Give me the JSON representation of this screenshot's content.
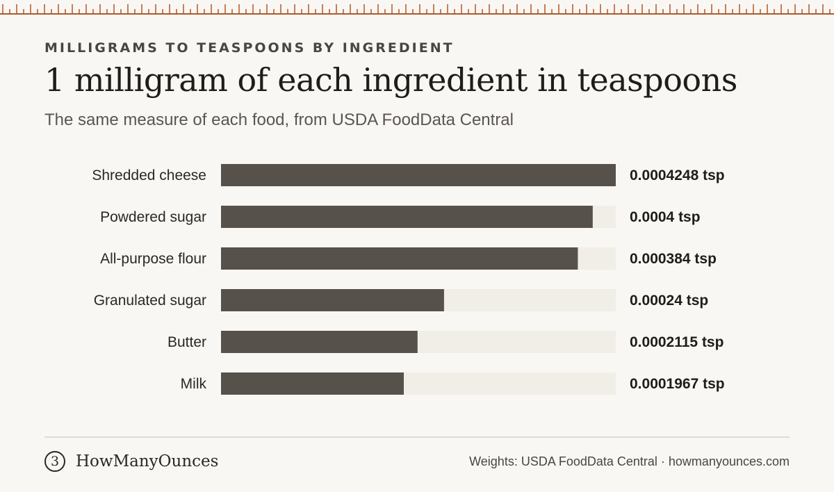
{
  "header": {
    "eyebrow": "MILLIGRAMS TO TEASPOONS BY INGREDIENT",
    "title": "1 milligram of each ingredient in teaspoons",
    "subtitle": "The same measure of each food, from USDA FoodData Central"
  },
  "chart_data": {
    "type": "bar",
    "orientation": "horizontal",
    "categories": [
      "Shredded cheese",
      "Powdered sugar",
      "All-purpose flour",
      "Granulated sugar",
      "Butter",
      "Milk"
    ],
    "values": [
      0.0004248,
      0.0004,
      0.000384,
      0.00024,
      0.0002115,
      0.0001967
    ],
    "value_labels": [
      "0.0004248 tsp",
      "0.0004 tsp",
      "0.000384 tsp",
      "0.00024 tsp",
      "0.0002115 tsp",
      "0.0001967 tsp"
    ],
    "xlim": [
      0,
      0.0004248
    ],
    "grid": false,
    "colors": {
      "bar": "#57514b",
      "track": "#f1eee7"
    }
  },
  "footer": {
    "logo_mark": "3",
    "brand": "HowManyOunces",
    "source": "Weights: USDA FoodData Central · howmanyounces.com"
  },
  "colors": {
    "accent": "#b0592a",
    "background": "#f9f7f3",
    "text": "#2b2724"
  }
}
